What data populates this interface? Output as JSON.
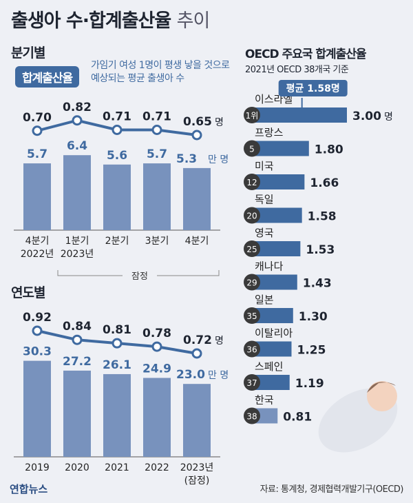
{
  "title": "출생아 수·합계출산율",
  "title_suffix": "추이",
  "quarterly": {
    "heading": "분기별",
    "badge": "합계출산율",
    "description": "가임기 여성 1명이 평생 낳을 것으로 예상되는 평균 출생아 수",
    "provisional_label": "잠정"
  },
  "annual": {
    "heading": "연도별"
  },
  "oecd": {
    "heading": "OECD 주요국 합계출산율",
    "subheading": "2021년 OECD 38개국 기준",
    "avg_callout": "평균 1.58명"
  },
  "source": "자료: 통계청, 경제협력개발기구(OECD)",
  "logo": "연합뉴스",
  "colors": {
    "bar": "#7892bd",
    "line": "#3f6aa0",
    "accent": "#3f6aa0"
  },
  "chart_data": [
    {
      "type": "bar",
      "name": "quarterly",
      "categories": [
        "4분기\n2022년",
        "1분기\n2023년",
        "2분기",
        "3분기",
        "4분기"
      ],
      "bar_values": [
        5.7,
        6.4,
        5.6,
        5.7,
        5.3
      ],
      "bar_labels": [
        "5.7",
        "6.4",
        "5.6",
        "5.7",
        "5.3"
      ],
      "bar_unit": "만 명",
      "line_values": [
        0.7,
        0.82,
        0.71,
        0.71,
        0.65
      ],
      "line_labels": [
        "0.70",
        "0.82",
        "0.71",
        "0.71",
        "0.65"
      ],
      "line_unit": "명"
    },
    {
      "type": "bar",
      "name": "annual",
      "categories": [
        "2019",
        "2020",
        "2021",
        "2022",
        "2023년\n(잠정)"
      ],
      "bar_values": [
        30.3,
        27.2,
        26.1,
        24.9,
        23.0
      ],
      "bar_labels": [
        "30.3",
        "27.2",
        "26.1",
        "24.9",
        "23.0"
      ],
      "bar_unit": "만 명",
      "line_values": [
        0.92,
        0.84,
        0.81,
        0.78,
        0.72
      ],
      "line_labels": [
        "0.92",
        "0.84",
        "0.81",
        "0.78",
        "0.72"
      ],
      "line_unit": "명"
    },
    {
      "type": "bar",
      "name": "oecd",
      "orientation": "horizontal",
      "countries": [
        "이스라엘",
        "프랑스",
        "미국",
        "독일",
        "영국",
        "캐나다",
        "일본",
        "이탈리아",
        "스페인",
        "한국"
      ],
      "ranks": [
        "1위",
        "5",
        "12",
        "20",
        "25",
        "29",
        "35",
        "36",
        "37",
        "38"
      ],
      "values": [
        3.0,
        1.8,
        1.66,
        1.58,
        1.53,
        1.43,
        1.3,
        1.25,
        1.19,
        0.81
      ],
      "value_labels": [
        "3.00",
        "1.80",
        "1.66",
        "1.58",
        "1.53",
        "1.43",
        "1.30",
        "1.25",
        "1.19",
        "0.81"
      ],
      "unit": "명"
    }
  ]
}
